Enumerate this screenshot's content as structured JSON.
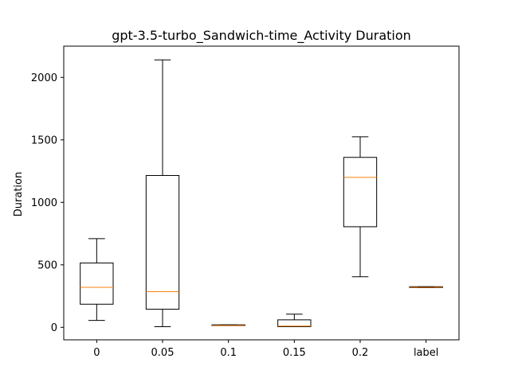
{
  "chart_data": {
    "type": "box",
    "title": "gpt-3.5-turbo_Sandwich-time_Activity Duration",
    "xlabel": "",
    "ylabel": "Duration",
    "ylim": [
      -100,
      2250
    ],
    "yticks": [
      0,
      500,
      1000,
      1500,
      2000
    ],
    "grid": false,
    "colors": {
      "box": "#000000",
      "median": "#ff7f0e",
      "frame": "#000000",
      "background": "#ffffff"
    },
    "categories": [
      "0",
      "0.05",
      "0.1",
      "0.15",
      "0.2",
      "label"
    ],
    "boxes": [
      {
        "label": "0",
        "whisker_low": 55,
        "q1": 185,
        "median": 320,
        "q3": 515,
        "whisker_high": 710
      },
      {
        "label": "0.05",
        "whisker_low": 5,
        "q1": 145,
        "median": 285,
        "q3": 1215,
        "whisker_high": 2140
      },
      {
        "label": "0.1",
        "whisker_low": 15,
        "q1": 15,
        "median": 15,
        "q3": 20,
        "whisker_high": 20
      },
      {
        "label": "0.15",
        "whisker_low": 5,
        "q1": 5,
        "median": 10,
        "q3": 60,
        "whisker_high": 105
      },
      {
        "label": "0.2",
        "whisker_low": 405,
        "q1": 805,
        "median": 1200,
        "q3": 1360,
        "whisker_high": 1525
      },
      {
        "label": "label",
        "whisker_low": 318,
        "q1": 318,
        "median": 320,
        "q3": 325,
        "whisker_high": 325
      }
    ]
  }
}
